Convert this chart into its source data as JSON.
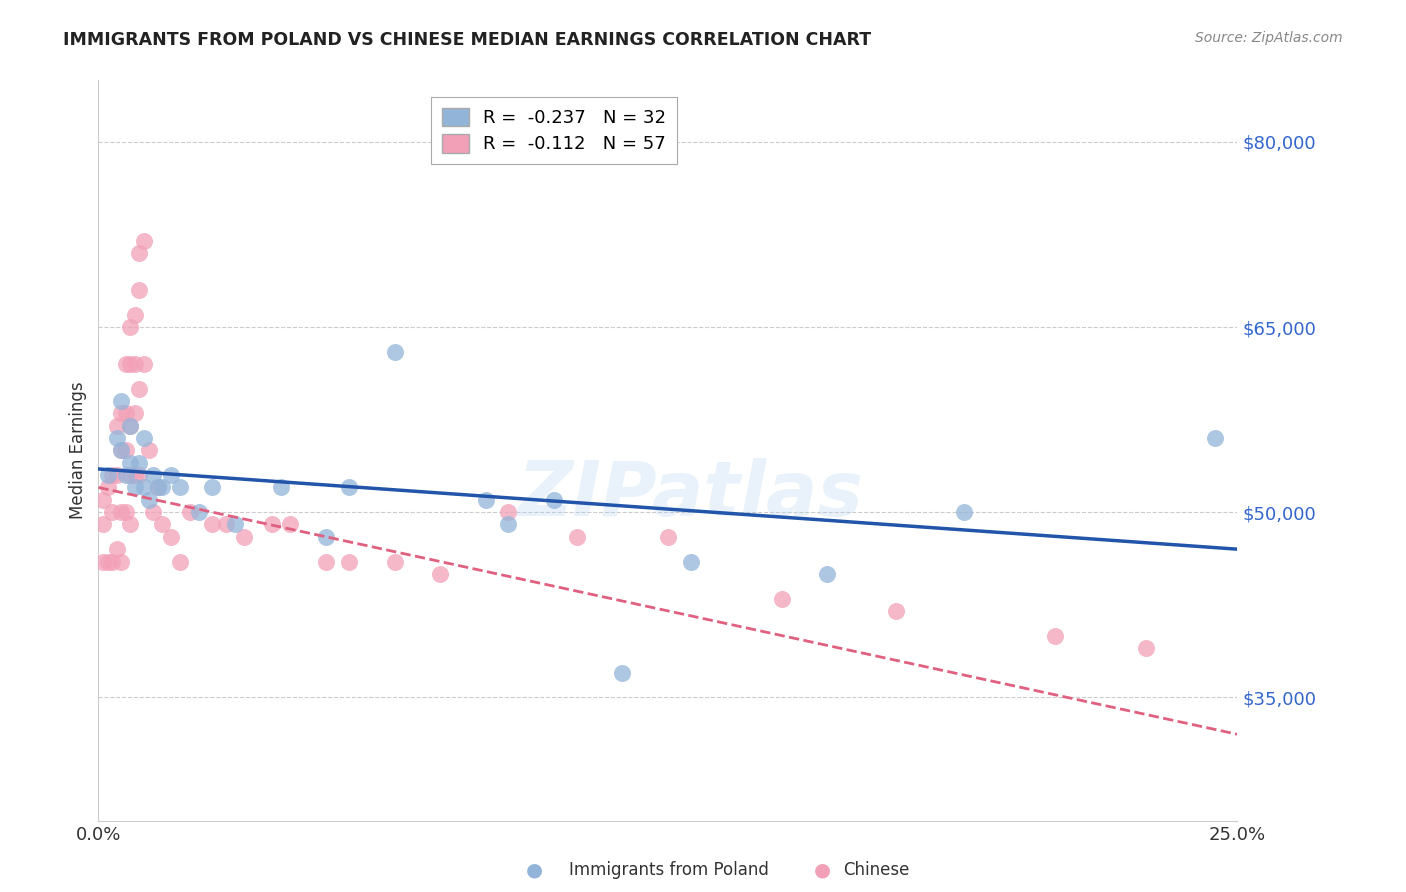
{
  "title": "IMMIGRANTS FROM POLAND VS CHINESE MEDIAN EARNINGS CORRELATION CHART",
  "source": "Source: ZipAtlas.com",
  "ylabel": "Median Earnings",
  "y_ticks": [
    35000,
    50000,
    65000,
    80000
  ],
  "y_tick_labels": [
    "$35,000",
    "$50,000",
    "$65,000",
    "$80,000"
  ],
  "x_min": 0.0,
  "x_max": 0.25,
  "y_min": 25000,
  "y_max": 85000,
  "poland_R": -0.237,
  "poland_N": 32,
  "chinese_R": -0.112,
  "chinese_N": 57,
  "poland_color": "#92B4D9",
  "chinese_color": "#F2A0B8",
  "poland_line_color": "#2255AA",
  "chinese_line_color": "#E06080",
  "watermark": "ZIPatlas",
  "poland_line_x0": 0.0,
  "poland_line_y0": 53500,
  "poland_line_x1": 0.25,
  "poland_line_y1": 47000,
  "chinese_line_x0": 0.0,
  "chinese_line_y0": 52000,
  "chinese_line_x1": 0.25,
  "chinese_line_y1": 32000,
  "poland_points_x": [
    0.002,
    0.004,
    0.005,
    0.005,
    0.006,
    0.007,
    0.007,
    0.008,
    0.009,
    0.01,
    0.01,
    0.011,
    0.012,
    0.013,
    0.014,
    0.016,
    0.018,
    0.022,
    0.025,
    0.03,
    0.04,
    0.05,
    0.055,
    0.065,
    0.085,
    0.09,
    0.1,
    0.115,
    0.13,
    0.16,
    0.19,
    0.245
  ],
  "poland_points_y": [
    53000,
    56000,
    55000,
    59000,
    53000,
    54000,
    57000,
    52000,
    54000,
    56000,
    52000,
    51000,
    53000,
    52000,
    52000,
    53000,
    52000,
    50000,
    52000,
    49000,
    52000,
    48000,
    52000,
    63000,
    51000,
    49000,
    51000,
    37000,
    46000,
    45000,
    50000,
    56000
  ],
  "chinese_points_x": [
    0.001,
    0.001,
    0.001,
    0.002,
    0.002,
    0.003,
    0.003,
    0.003,
    0.004,
    0.004,
    0.004,
    0.005,
    0.005,
    0.005,
    0.005,
    0.006,
    0.006,
    0.006,
    0.006,
    0.007,
    0.007,
    0.007,
    0.007,
    0.007,
    0.008,
    0.008,
    0.008,
    0.008,
    0.009,
    0.009,
    0.009,
    0.009,
    0.01,
    0.01,
    0.011,
    0.012,
    0.013,
    0.014,
    0.016,
    0.018,
    0.02,
    0.025,
    0.028,
    0.032,
    0.038,
    0.042,
    0.05,
    0.055,
    0.065,
    0.075,
    0.09,
    0.105,
    0.125,
    0.15,
    0.175,
    0.21,
    0.23
  ],
  "chinese_points_y": [
    51000,
    49000,
    46000,
    52000,
    46000,
    53000,
    50000,
    46000,
    57000,
    53000,
    47000,
    58000,
    55000,
    50000,
    46000,
    62000,
    58000,
    55000,
    50000,
    65000,
    62000,
    57000,
    53000,
    49000,
    66000,
    62000,
    58000,
    53000,
    71000,
    68000,
    60000,
    53000,
    72000,
    62000,
    55000,
    50000,
    52000,
    49000,
    48000,
    46000,
    50000,
    49000,
    49000,
    48000,
    49000,
    49000,
    46000,
    46000,
    46000,
    45000,
    50000,
    48000,
    48000,
    43000,
    42000,
    40000,
    39000
  ]
}
